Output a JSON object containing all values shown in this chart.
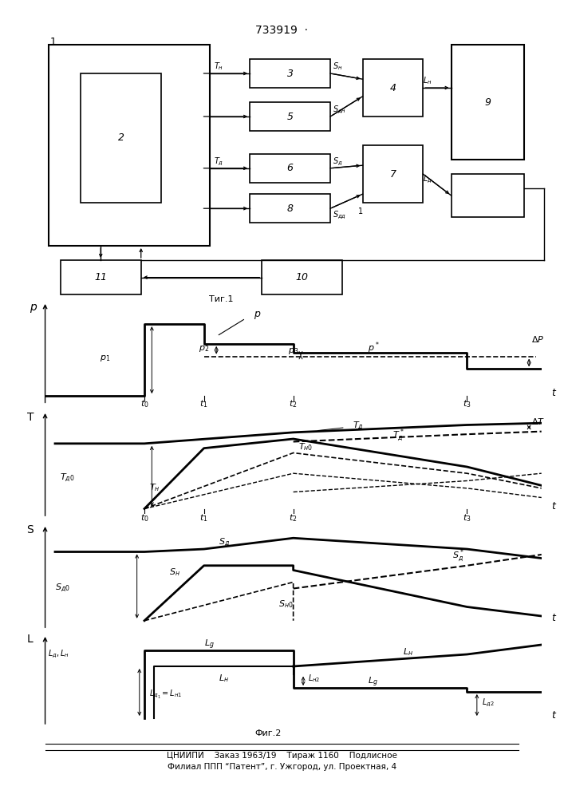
{
  "title": "733919  ·",
  "fig1_label": "Τиг.1",
  "fig2_label": "Фиг.2",
  "footer_line1": "ЦНИИПИ    Заказ 1963/19    Тираж 1160    Подлисное",
  "footer_line2": "Филиал ППП “Патент”, г. Ужгород, ул. Проектная, 4"
}
